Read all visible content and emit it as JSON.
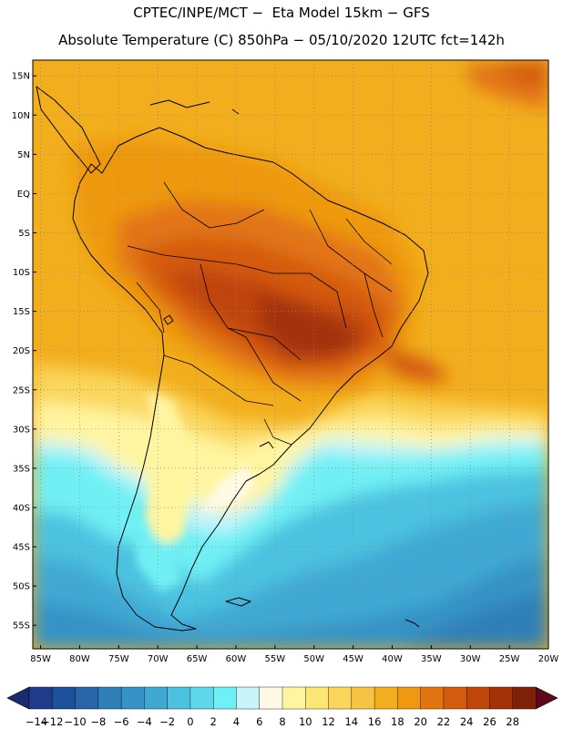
{
  "title": {
    "line1": "CPTEC/INPE/MCT −  Eta Model 15km − GFS",
    "line2": "Absolute Temperature (C) 850hPa − 05/10/2020 12UTC fct=142h"
  },
  "map": {
    "lat_range": [
      -58,
      17
    ],
    "lon_range": [
      -86,
      -20
    ],
    "lat_ticks": [
      {
        "value": 15,
        "label": "15N"
      },
      {
        "value": 10,
        "label": "10N"
      },
      {
        "value": 5,
        "label": "5N"
      },
      {
        "value": 0,
        "label": "EQ"
      },
      {
        "value": -5,
        "label": "5S"
      },
      {
        "value": -10,
        "label": "10S"
      },
      {
        "value": -15,
        "label": "15S"
      },
      {
        "value": -20,
        "label": "20S"
      },
      {
        "value": -25,
        "label": "25S"
      },
      {
        "value": -30,
        "label": "30S"
      },
      {
        "value": -35,
        "label": "35S"
      },
      {
        "value": -40,
        "label": "40S"
      },
      {
        "value": -45,
        "label": "45S"
      },
      {
        "value": -50,
        "label": "50S"
      },
      {
        "value": -55,
        "label": "55S"
      }
    ],
    "lon_ticks": [
      {
        "value": -85,
        "label": "85W"
      },
      {
        "value": -80,
        "label": "80W"
      },
      {
        "value": -75,
        "label": "75W"
      },
      {
        "value": -70,
        "label": "70W"
      },
      {
        "value": -65,
        "label": "65W"
      },
      {
        "value": -60,
        "label": "60W"
      },
      {
        "value": -55,
        "label": "55W"
      },
      {
        "value": -50,
        "label": "50W"
      },
      {
        "value": -45,
        "label": "45W"
      },
      {
        "value": -40,
        "label": "40W"
      },
      {
        "value": -35,
        "label": "35W"
      },
      {
        "value": -30,
        "label": "30W"
      },
      {
        "value": -25,
        "label": "25W"
      },
      {
        "value": -20,
        "label": "20W"
      }
    ]
  },
  "colorbar": {
    "labels": [
      "−14",
      "−12",
      "−10",
      "−8",
      "−6",
      "−4",
      "−2",
      "0",
      "2",
      "4",
      "6",
      "8",
      "10",
      "12",
      "14",
      "16",
      "18",
      "20",
      "22",
      "24",
      "26",
      "28"
    ],
    "colors": [
      "#1f3c8c",
      "#1e4f9b",
      "#2866a8",
      "#2f7fb8",
      "#3593c6",
      "#40a9d3",
      "#4cc2e0",
      "#5cd8ea",
      "#6ff0f4",
      "#c8f4fa",
      "#fff9e6",
      "#fff5a0",
      "#fde774",
      "#fad65a",
      "#f6c442",
      "#f2ae1d",
      "#ee9910",
      "#e27512",
      "#d45a0e",
      "#bf4509",
      "#a33307",
      "#7e2106"
    ],
    "under_color": "#1a2a70",
    "over_color": "#5c0a1a"
  }
}
